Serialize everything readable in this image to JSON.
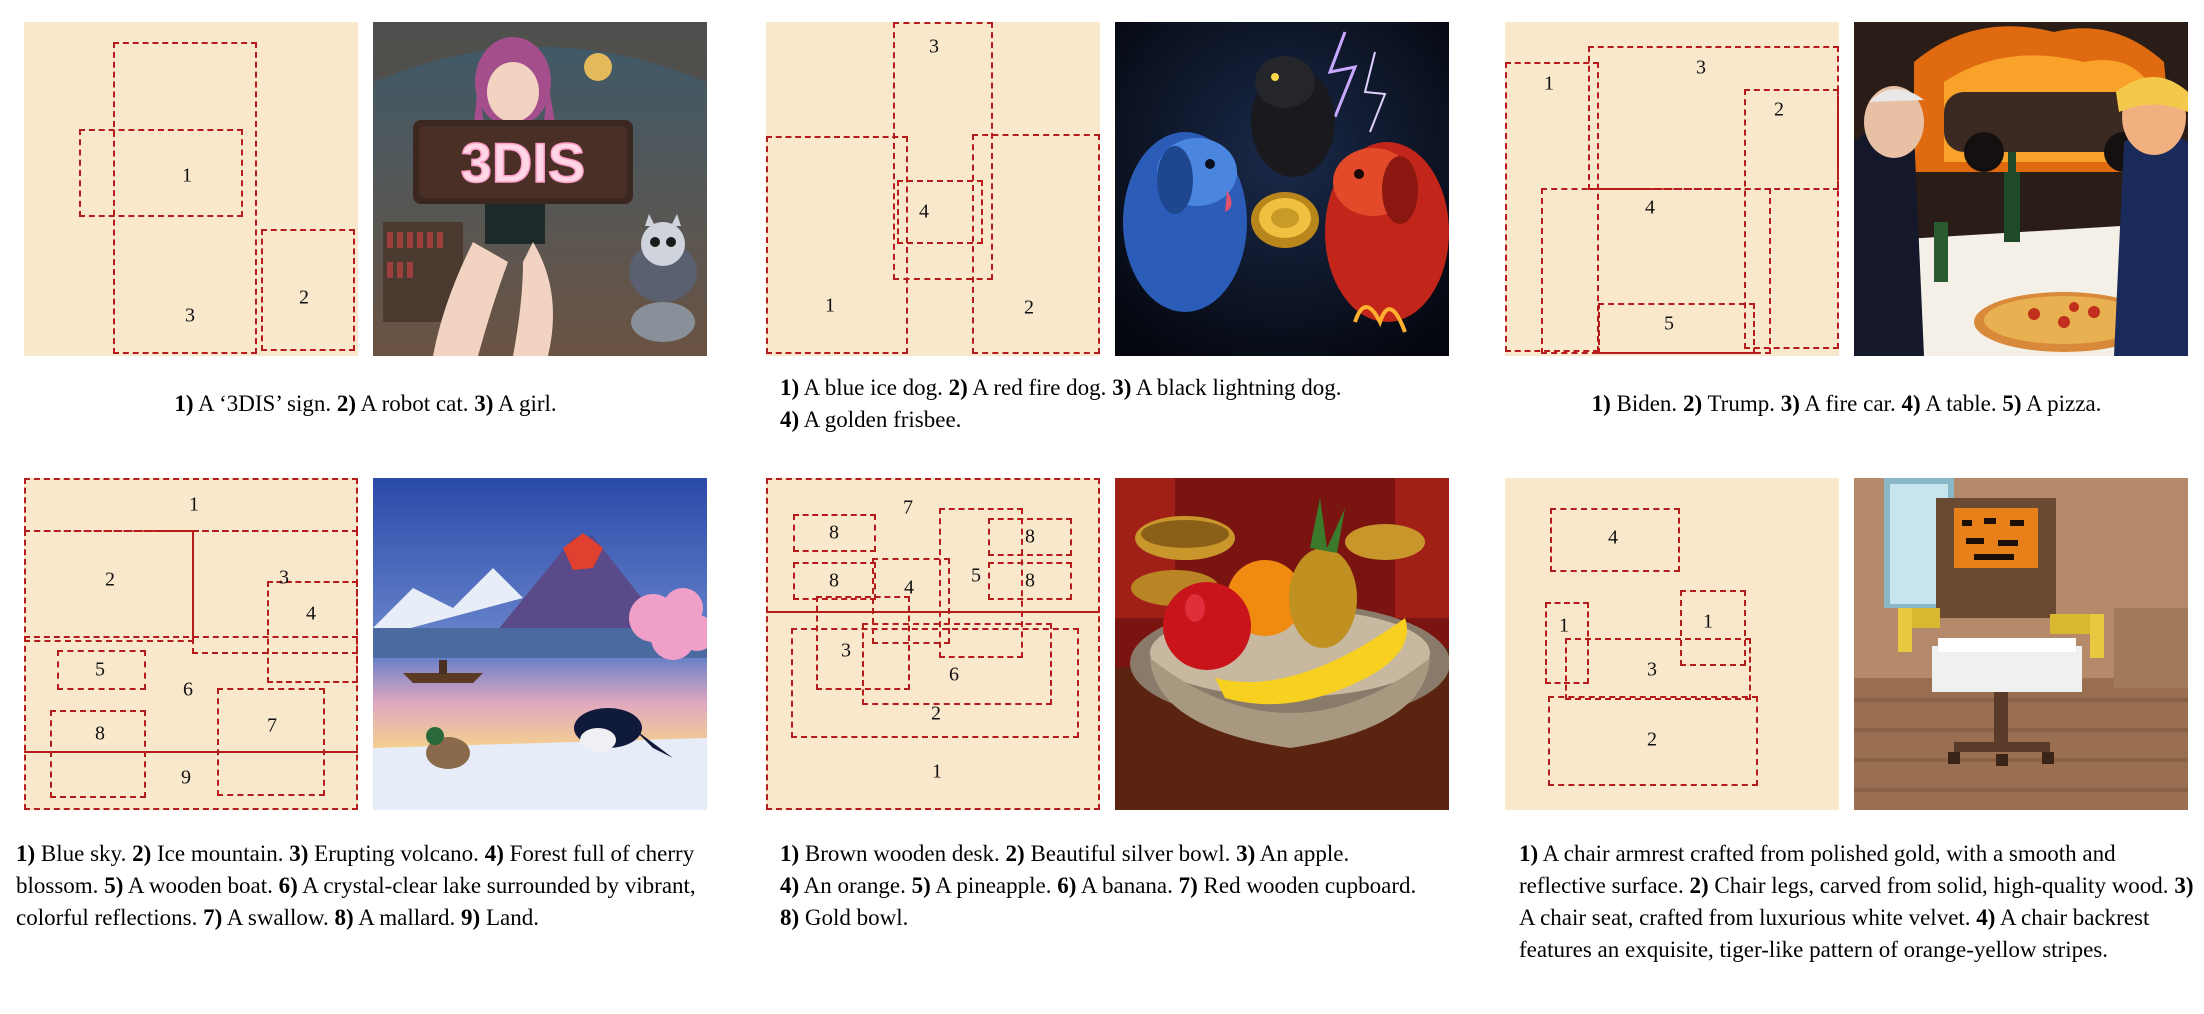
{
  "figure": {
    "examples": [
      {
        "id": "3dis",
        "image_desc_icon": "girl-holding-3dis-sign-with-robot-cat",
        "sign_text": "3DIS",
        "labels": [
          "1",
          "2",
          "3"
        ],
        "caption": [
          {
            "n": "1)",
            "t": " A ‘3DIS’ sign. "
          },
          {
            "n": "2)",
            "t": " A robot cat. "
          },
          {
            "n": "3)",
            "t": " A girl."
          }
        ]
      },
      {
        "id": "dogs",
        "image_desc_icon": "three-dogs-with-frisbee",
        "labels": [
          "1",
          "2",
          "3",
          "4"
        ],
        "caption": [
          {
            "n": "1)",
            "t": " A blue ice dog. "
          },
          {
            "n": "2)",
            "t": " A red fire dog. "
          },
          {
            "n": "3)",
            "t": " A black lightning dog. "
          },
          {
            "n": "4)",
            "t": " A golden frisbee."
          }
        ]
      },
      {
        "id": "politics",
        "image_desc_icon": "two-men-dining-with-burning-car",
        "labels": [
          "1",
          "2",
          "3",
          "4",
          "5"
        ],
        "caption": [
          {
            "n": "1)",
            "t": " Biden. "
          },
          {
            "n": "2)",
            "t": " Trump. "
          },
          {
            "n": "3)",
            "t": " A fire car. "
          },
          {
            "n": "4)",
            "t": " A table. "
          },
          {
            "n": "5)",
            "t": " A pizza."
          }
        ]
      },
      {
        "id": "landscape",
        "image_desc_icon": "volcano-lake-landscape-with-birds",
        "labels": [
          "1",
          "2",
          "3",
          "4",
          "5",
          "6",
          "7",
          "8",
          "9"
        ],
        "caption": [
          {
            "n": "1)",
            "t": " Blue sky. "
          },
          {
            "n": "2)",
            "t": " Ice mountain. "
          },
          {
            "n": "3)",
            "t": " Erupting volcano. "
          },
          {
            "n": "4)",
            "t": " Forest full of cherry blossom. "
          },
          {
            "n": "5)",
            "t": " A wooden boat. "
          },
          {
            "n": "6)",
            "t": " A crystal-clear lake surrounded by vibrant, colorful reflections. "
          },
          {
            "n": "7)",
            "t": " A swallow. "
          },
          {
            "n": "8)",
            "t": " A mallard. "
          },
          {
            "n": "9)",
            "t": " Land."
          }
        ]
      },
      {
        "id": "fruit",
        "image_desc_icon": "fruit-bowl-on-desk",
        "labels": [
          "1",
          "2",
          "3",
          "4",
          "5",
          "6",
          "7",
          "8",
          "8",
          "8",
          "8"
        ],
        "caption": [
          {
            "n": "1)",
            "t": " Brown wooden desk. "
          },
          {
            "n": "2)",
            "t": " Beautiful silver bowl. "
          },
          {
            "n": "3)",
            "t": " An apple. "
          },
          {
            "n": "4)",
            "t": " An orange. "
          },
          {
            "n": "5)",
            "t": " A pineapple. "
          },
          {
            "n": "6)",
            "t": " A banana. "
          },
          {
            "n": "7)",
            "t": " Red wooden cupboard. "
          },
          {
            "n": "8)",
            "t": " Gold bowl."
          }
        ]
      },
      {
        "id": "chair",
        "image_desc_icon": "pixel-art-chair",
        "labels": [
          "1",
          "1",
          "2",
          "3",
          "4"
        ],
        "caption": [
          {
            "n": "1)",
            "t": " A chair armrest crafted from polished gold, with a smooth and reflective surface. "
          },
          {
            "n": "2)",
            "t": " Chair legs, carved from solid, high-quality wood. "
          },
          {
            "n": "3)",
            "t": " A chair seat, crafted from luxurious white velvet. "
          },
          {
            "n": "4)",
            "t": " A chair backrest features an exquisite, tiger-like pattern of orange-yellow stripes."
          }
        ]
      }
    ],
    "colors": {
      "layout_bg": "#f9e8cc",
      "box_border": "#b71c1c"
    }
  }
}
